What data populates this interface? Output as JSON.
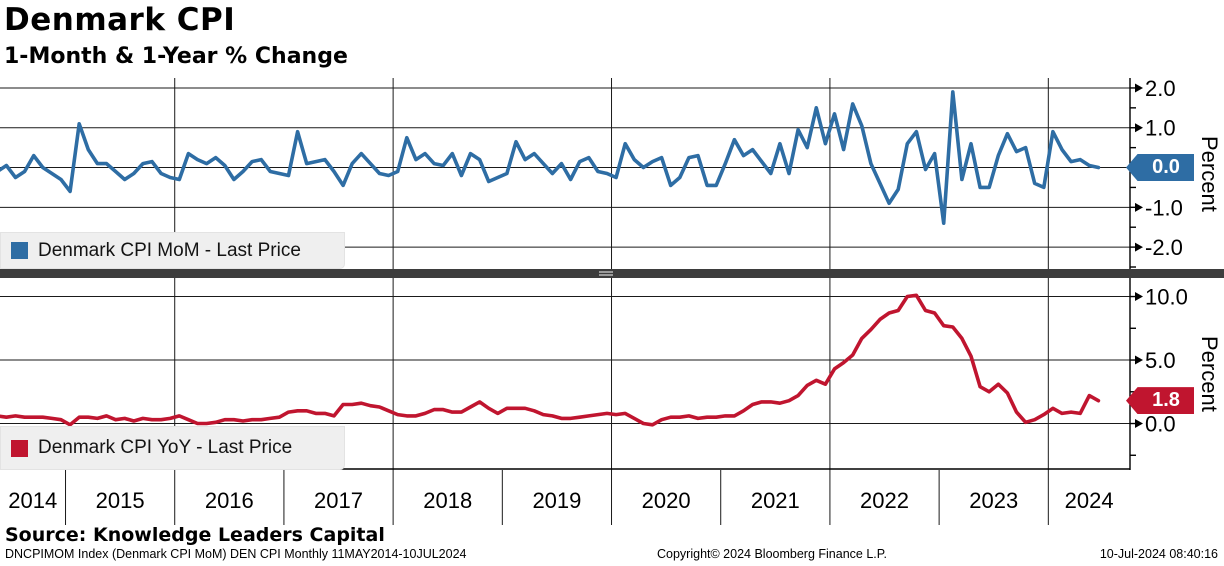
{
  "header": {
    "title": "Denmark CPI",
    "subtitle": "1-Month & 1-Year % Change"
  },
  "source_line": "Source: Knowledge Leaders Capital",
  "footer": {
    "left": "DNCPIMOM Index (Denmark CPI MoM) DEN CPI  Monthly 11MAY2014-10JUL2024",
    "center": "Copyright© 2024 Bloomberg Finance L.P.",
    "right": "10-Jul-2024 08:40:16"
  },
  "colors": {
    "mom_blue": "#2e6da4",
    "yoy_red": "#c0152f",
    "grid": "#1a1a1a",
    "separator": "#3d3d3d",
    "legend_bg": "#efefef"
  },
  "x_axis": {
    "years": [
      "2014",
      "2015",
      "2016",
      "2017",
      "2018",
      "2019",
      "2020",
      "2021",
      "2022",
      "2023",
      "2024"
    ],
    "gridline_years": [
      2016,
      2018,
      2020,
      2022,
      2024
    ],
    "range_label": "11MAY2014-10JUL2024"
  },
  "chart_data": [
    {
      "type": "line",
      "title": "Denmark CPI MoM",
      "legend": "Denmark CPI MoM - Last Price",
      "ylabel": "Percent",
      "color": "#2e6da4",
      "last_price": "0.0",
      "yticks": [
        2.0,
        1.0,
        0.0,
        -1.0,
        -2.0
      ],
      "minor_step": 0.5,
      "ylim": [
        -2.55,
        2.25
      ],
      "start": "2014-05",
      "frequency": "Monthly",
      "values": [
        -0.1,
        0.05,
        -0.25,
        -0.1,
        0.3,
        0.0,
        -0.15,
        -0.3,
        -0.6,
        1.1,
        0.45,
        0.1,
        0.1,
        -0.1,
        -0.3,
        -0.15,
        0.1,
        0.15,
        -0.15,
        -0.25,
        -0.3,
        0.35,
        0.2,
        0.1,
        0.25,
        0.05,
        -0.3,
        -0.1,
        0.15,
        0.2,
        -0.1,
        -0.15,
        -0.2,
        0.9,
        0.1,
        0.15,
        0.2,
        -0.1,
        -0.45,
        0.1,
        0.35,
        0.1,
        -0.15,
        -0.2,
        -0.1,
        0.75,
        0.2,
        0.35,
        0.1,
        0.05,
        0.35,
        -0.2,
        0.35,
        0.2,
        -0.35,
        -0.25,
        -0.15,
        0.65,
        0.2,
        0.35,
        0.1,
        -0.15,
        0.1,
        -0.3,
        0.15,
        0.25,
        -0.1,
        -0.15,
        -0.25,
        0.6,
        0.2,
        0.0,
        0.15,
        0.25,
        -0.45,
        -0.25,
        0.25,
        0.3,
        -0.45,
        -0.45,
        0.1,
        0.7,
        0.3,
        0.45,
        0.15,
        -0.15,
        0.6,
        -0.15,
        0.95,
        0.5,
        1.5,
        0.6,
        1.35,
        0.45,
        1.6,
        1.05,
        0.1,
        -0.4,
        -0.9,
        -0.55,
        0.6,
        0.9,
        -0.05,
        0.35,
        -1.4,
        1.9,
        -0.3,
        0.6,
        -0.5,
        -0.5,
        0.3,
        0.85,
        0.4,
        0.5,
        -0.4,
        -0.5,
        0.9,
        0.45,
        0.15,
        0.2,
        0.05,
        0.0
      ]
    },
    {
      "type": "line",
      "title": "Denmark CPI YoY",
      "legend": "Denmark CPI YoY - Last Price",
      "ylabel": "Percent",
      "color": "#c0152f",
      "last_price": "1.8",
      "yticks": [
        10.0,
        5.0,
        0.0
      ],
      "minor_step": 2.5,
      "ylim": [
        -3.66,
        11.46
      ],
      "start": "2014-05",
      "frequency": "Monthly",
      "values": [
        0.6,
        0.5,
        0.6,
        0.5,
        0.5,
        0.5,
        0.4,
        0.3,
        -0.1,
        0.5,
        0.5,
        0.4,
        0.6,
        0.3,
        0.4,
        0.2,
        0.4,
        0.3,
        0.3,
        0.4,
        0.6,
        0.3,
        0.0,
        0.0,
        0.1,
        0.3,
        0.3,
        0.2,
        0.3,
        0.3,
        0.4,
        0.5,
        0.9,
        1.0,
        1.0,
        0.8,
        0.8,
        0.6,
        1.5,
        1.5,
        1.6,
        1.4,
        1.3,
        1.0,
        0.7,
        0.6,
        0.6,
        0.8,
        1.1,
        1.1,
        0.9,
        0.9,
        1.3,
        1.7,
        1.2,
        0.8,
        1.2,
        1.2,
        1.2,
        1.0,
        0.7,
        0.6,
        0.4,
        0.4,
        0.5,
        0.6,
        0.7,
        0.8,
        0.7,
        0.8,
        0.4,
        0.0,
        -0.1,
        0.3,
        0.5,
        0.5,
        0.6,
        0.4,
        0.5,
        0.5,
        0.6,
        0.6,
        1.0,
        1.5,
        1.7,
        1.7,
        1.6,
        1.8,
        2.2,
        3.0,
        3.4,
        3.1,
        4.3,
        4.8,
        5.4,
        6.7,
        7.4,
        8.2,
        8.7,
        8.9,
        10.0,
        10.1,
        8.9,
        8.7,
        7.7,
        7.6,
        6.7,
        5.3,
        2.9,
        2.5,
        3.1,
        2.4,
        0.9,
        0.1,
        0.3,
        0.7,
        1.2,
        0.8,
        0.9,
        0.8,
        2.2,
        1.8
      ]
    }
  ]
}
